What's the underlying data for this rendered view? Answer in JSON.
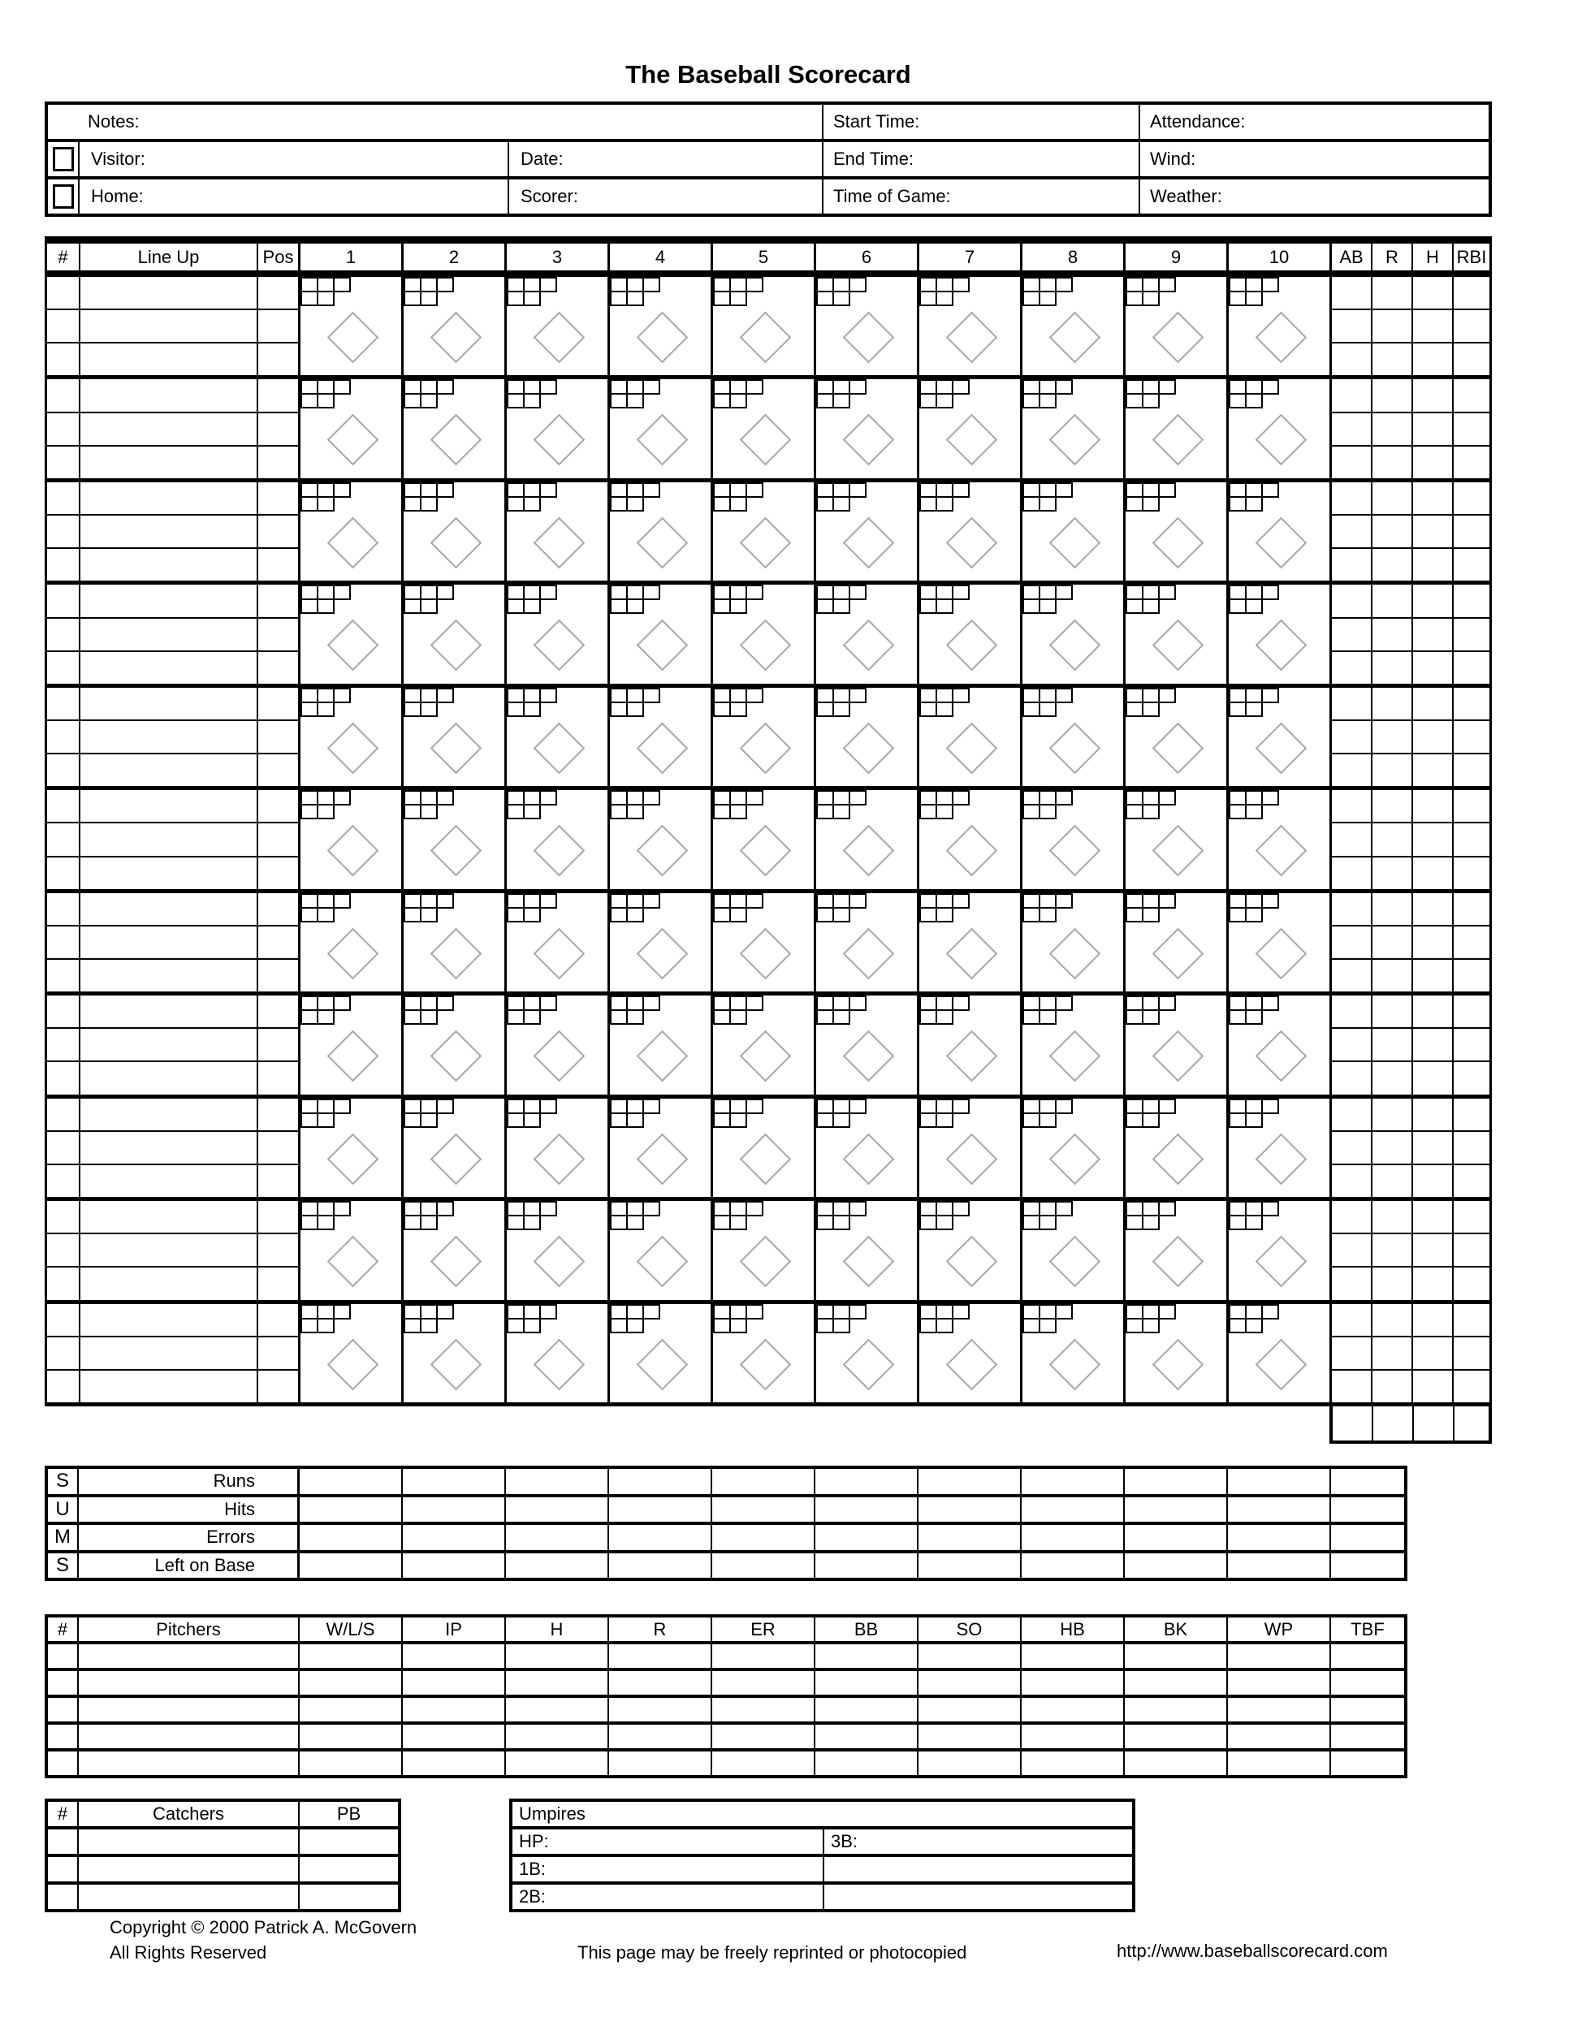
{
  "page": {
    "title": "The Baseball Scorecard"
  },
  "info": {
    "notes": "Notes:",
    "start_time": "Start Time:",
    "attendance": "Attendance:",
    "visitor": "Visitor:",
    "date": "Date:",
    "end_time": "End Time:",
    "wind": "Wind:",
    "home": "Home:",
    "scorer": "Scorer:",
    "time_of_game": "Time of Game:",
    "weather": "Weather:"
  },
  "grid": {
    "col_num": "#",
    "col_lineup": "Line Up",
    "col_pos": "Pos",
    "innings": [
      "1",
      "2",
      "3",
      "4",
      "5",
      "6",
      "7",
      "8",
      "9",
      "10"
    ],
    "stats": [
      "AB",
      "R",
      "H",
      "RBI"
    ],
    "player_rows": 11,
    "sub_rows": 3
  },
  "sums": {
    "side_letters": [
      "S",
      "U",
      "M",
      "S"
    ],
    "row_labels": [
      "Runs",
      "Hits",
      "Errors",
      "Left on Base"
    ],
    "inning_columns": 10
  },
  "pitchers": {
    "headers": [
      "#",
      "Pitchers",
      "W/L/S",
      "IP",
      "H",
      "R",
      "ER",
      "BB",
      "SO",
      "HB",
      "BK",
      "WP",
      "TBF"
    ],
    "rows": 5
  },
  "catchers": {
    "headers": [
      "#",
      "Catchers",
      "PB"
    ],
    "rows": 3
  },
  "umpires": {
    "title": "Umpires",
    "hp": "HP:",
    "b3": "3B:",
    "b1": "1B:",
    "b2": "2B:"
  },
  "footer": {
    "copyright": "Copyright © 2000 Patrick A. McGovern",
    "rights": "All Rights Reserved",
    "center": "This page may be freely reprinted or photocopied",
    "url": "http://www.baseballscorecard.com"
  },
  "colors": {
    "line": "#000000",
    "diamond": "#a8a8a8"
  }
}
